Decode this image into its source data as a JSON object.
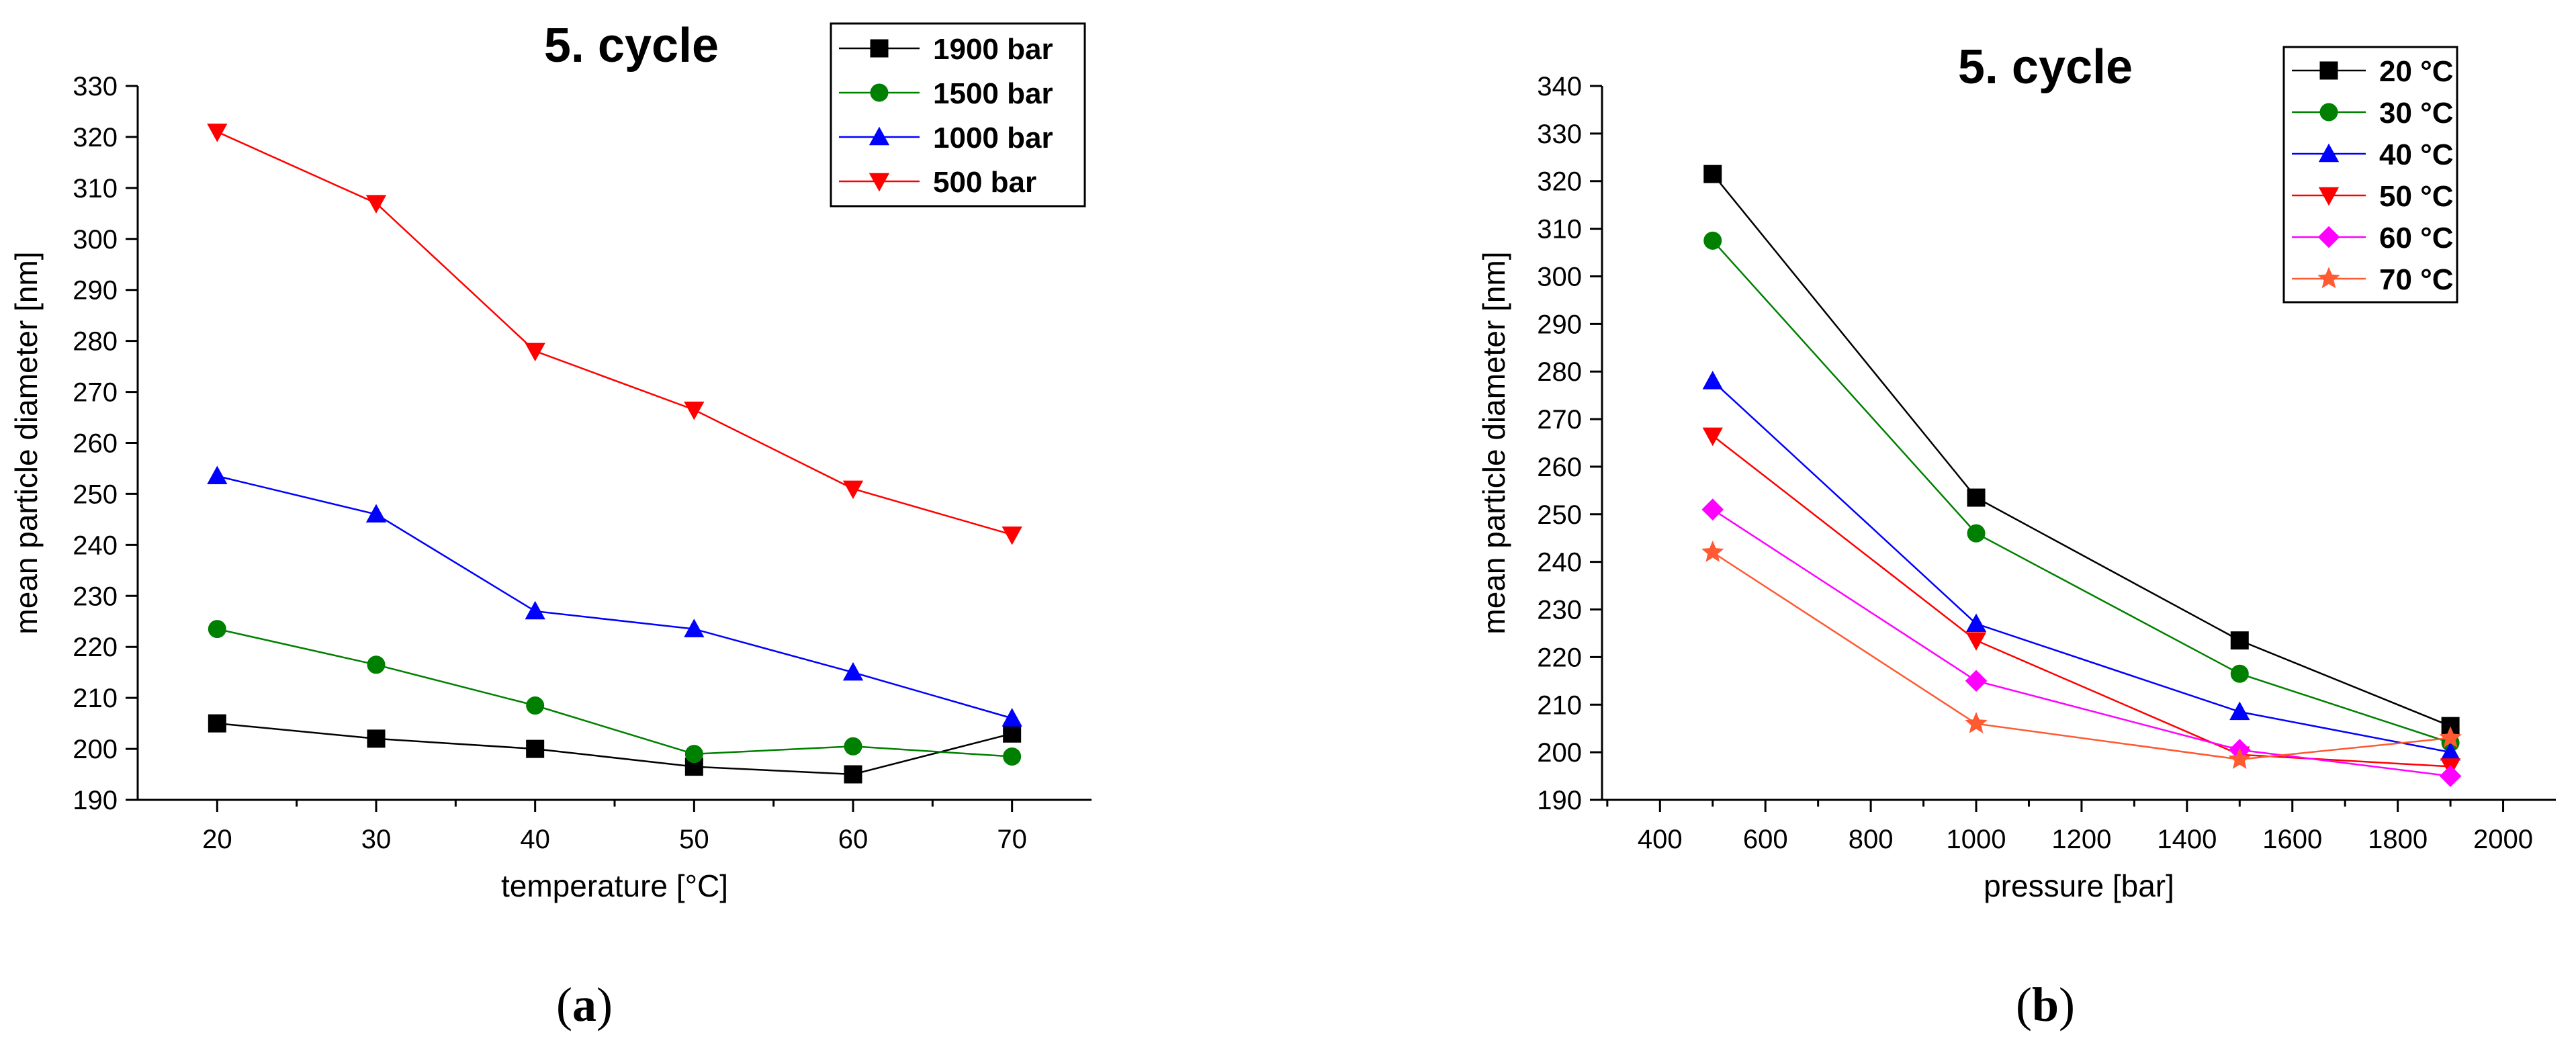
{
  "chart_data": [
    {
      "panel_label": "a",
      "type": "line",
      "title": "5. cycle",
      "xlabel": "temperature [°C]",
      "ylabel": "mean particle diameter [nm]",
      "xlim": [
        15,
        75
      ],
      "ylim": [
        190,
        330
      ],
      "xticks": [
        20,
        30,
        40,
        50,
        60,
        70
      ],
      "yticks": [
        190,
        200,
        210,
        220,
        230,
        240,
        250,
        260,
        270,
        280,
        290,
        300,
        310,
        320,
        330
      ],
      "x": [
        20,
        30,
        40,
        50,
        60,
        70
      ],
      "legend_position": "top-right",
      "series": [
        {
          "name": "1900 bar",
          "color": "#000000",
          "marker": "square",
          "values": [
            205,
            202,
            200,
            196.5,
            195,
            203
          ]
        },
        {
          "name": "1500 bar",
          "color": "#008000",
          "marker": "circle",
          "values": [
            223.5,
            216.5,
            208.5,
            199,
            200.5,
            198.5
          ]
        },
        {
          "name": "1000 bar",
          "color": "#0000ff",
          "marker": "triangle-up",
          "values": [
            253.5,
            246,
            227,
            223.5,
            215,
            206
          ]
        },
        {
          "name": "500 bar",
          "color": "#ff0000",
          "marker": "triangle-down",
          "values": [
            321,
            307,
            278,
            266.5,
            251,
            242
          ]
        }
      ]
    },
    {
      "panel_label": "b",
      "type": "line",
      "title": "5. cycle",
      "xlabel": "pressure [bar]",
      "ylabel": "mean particle diameter [nm]",
      "xlim": [
        290,
        2100
      ],
      "ylim": [
        190,
        340
      ],
      "xticks": [
        400,
        600,
        800,
        1000,
        1200,
        1400,
        1600,
        1800,
        2000
      ],
      "yticks": [
        190,
        200,
        210,
        220,
        230,
        240,
        250,
        260,
        270,
        280,
        290,
        300,
        310,
        320,
        330,
        340
      ],
      "x": [
        500,
        1000,
        1500,
        1900
      ],
      "legend_position": "top-right",
      "series": [
        {
          "name": "20 °C",
          "color": "#000000",
          "marker": "square",
          "values": [
            321.5,
            253.5,
            223.5,
            205.5
          ]
        },
        {
          "name": "30 °C",
          "color": "#008000",
          "marker": "circle",
          "values": [
            307.5,
            246,
            216.5,
            202
          ]
        },
        {
          "name": "40 °C",
          "color": "#0000ff",
          "marker": "triangle-up",
          "values": [
            278,
            227,
            208.5,
            200
          ]
        },
        {
          "name": "50 °C",
          "color": "#ff0000",
          "marker": "triangle-down",
          "values": [
            266.5,
            223.5,
            199.5,
            197
          ]
        },
        {
          "name": "60 °C",
          "color": "#ff00ff",
          "marker": "diamond",
          "values": [
            251,
            215,
            200.5,
            195
          ]
        },
        {
          "name": "70 °C",
          "color": "#ff5a32",
          "marker": "star",
          "values": [
            242,
            206,
            198.5,
            203
          ]
        }
      ]
    }
  ]
}
